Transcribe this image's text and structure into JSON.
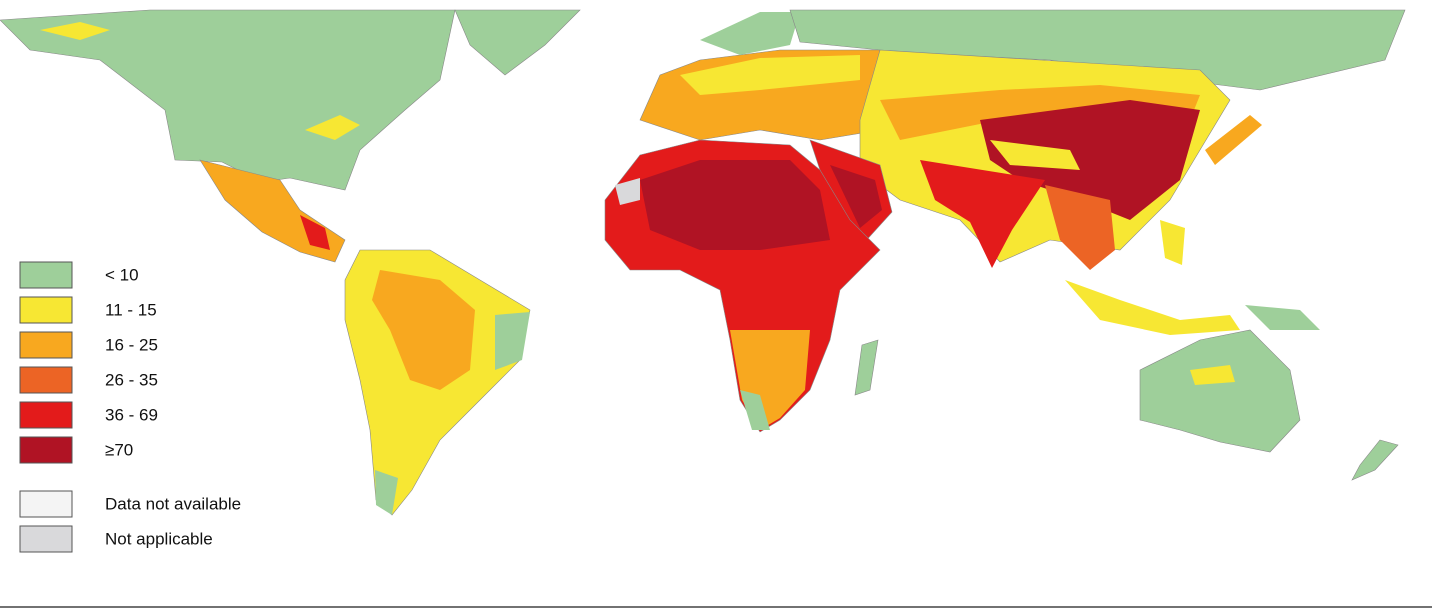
{
  "legend": {
    "items": [
      {
        "label": "< 10",
        "color": "#9ecf9a"
      },
      {
        "label": "11 - 15",
        "color": "#f7e733"
      },
      {
        "label": "16 - 25",
        "color": "#f8a81f"
      },
      {
        "label": "26 - 35",
        "color": "#ec6425"
      },
      {
        "label": "36 - 69",
        "color": "#e31b1b"
      },
      {
        "label": "≥70",
        "color": "#b01324"
      },
      {
        "label": "Data not available",
        "color": "#f4f4f4"
      },
      {
        "label": "Not applicable",
        "color": "#d9d9db"
      }
    ]
  }
}
